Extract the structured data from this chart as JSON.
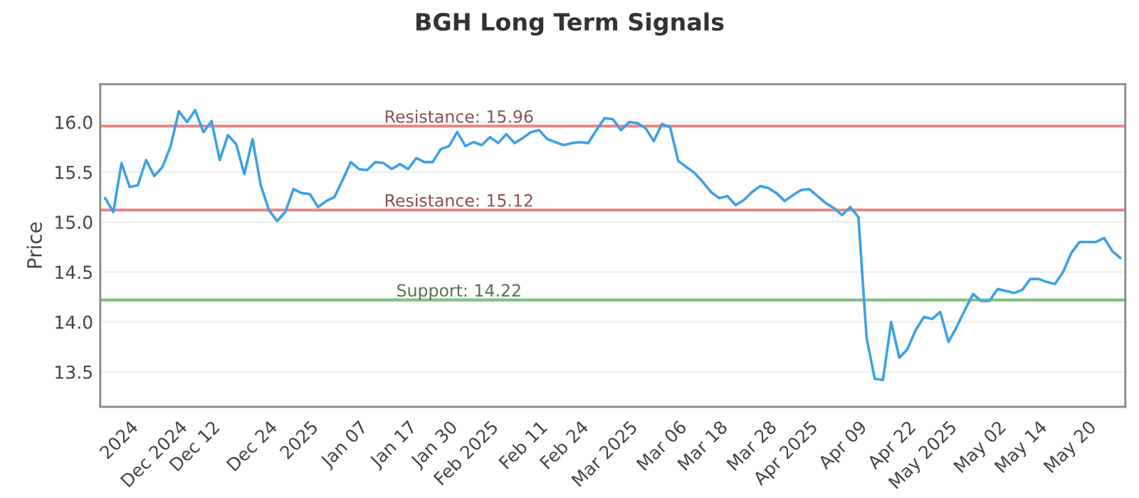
{
  "chart_data": {
    "type": "line",
    "title": "BGH Long Term Signals",
    "ylabel": "Price",
    "categories": [
      null,
      null,
      null,
      "2024",
      null,
      null,
      null,
      null,
      null,
      "Dec 2024",
      null,
      null,
      null,
      "Dec 12",
      null,
      null,
      null,
      null,
      null,
      null,
      "Dec 24",
      null,
      null,
      null,
      null,
      "2025",
      null,
      null,
      null,
      null,
      null,
      "Jan 07",
      null,
      null,
      null,
      null,
      null,
      "Jan 17",
      null,
      null,
      null,
      null,
      "Jan 30",
      null,
      null,
      null,
      null,
      "Feb 2025",
      null,
      null,
      null,
      null,
      null,
      "Feb 11",
      null,
      null,
      null,
      null,
      "Feb 24",
      null,
      null,
      null,
      null,
      null,
      "Mar 2025",
      null,
      null,
      null,
      null,
      null,
      "Mar 06",
      null,
      null,
      null,
      null,
      "Mar 18",
      null,
      null,
      null,
      null,
      null,
      "Mar 28",
      null,
      null,
      null,
      null,
      "Apr 2025",
      null,
      null,
      null,
      null,
      null,
      "Apr 09",
      null,
      null,
      null,
      null,
      null,
      "Apr 22",
      null,
      null,
      null,
      null,
      "May 2025",
      null,
      null,
      null,
      null,
      null,
      "May 02",
      null,
      null,
      null,
      null,
      "May 14",
      null,
      null,
      null,
      null,
      null,
      "May 20",
      null,
      null,
      null,
      null
    ],
    "series": [
      {
        "color": "#3ca1e6",
        "values": [
          15.24,
          15.1,
          15.59,
          15.35,
          15.37,
          15.62,
          15.46,
          15.55,
          15.76,
          16.11,
          16.0,
          16.12,
          15.9,
          16.01,
          15.62,
          15.87,
          15.78,
          15.48,
          15.83,
          15.37,
          15.12,
          15.01,
          15.1,
          15.33,
          15.29,
          15.28,
          15.15,
          15.21,
          15.25,
          15.42,
          15.6,
          15.53,
          15.52,
          15.6,
          15.59,
          15.53,
          15.58,
          15.53,
          15.64,
          15.6,
          15.6,
          15.73,
          15.76,
          15.9,
          15.76,
          15.8,
          15.77,
          15.85,
          15.79,
          15.88,
          15.79,
          15.84,
          15.9,
          15.92,
          15.83,
          15.8,
          15.77,
          15.79,
          15.8,
          15.79,
          15.92,
          16.04,
          16.03,
          15.92,
          16.0,
          15.99,
          15.94,
          15.81,
          15.98,
          15.95,
          15.61,
          15.55,
          15.49,
          15.4,
          15.3,
          15.24,
          15.26,
          15.17,
          15.22,
          15.3,
          15.36,
          15.34,
          15.29,
          15.21,
          15.27,
          15.32,
          15.33,
          15.26,
          15.19,
          15.14,
          15.07,
          15.15,
          15.05,
          13.84,
          13.43,
          13.42,
          14.0,
          13.64,
          13.73,
          13.92,
          14.05,
          14.03,
          14.1,
          13.8,
          13.95,
          14.12,
          14.28,
          14.21,
          14.21,
          14.33,
          14.31,
          14.29,
          14.32,
          14.43,
          14.43,
          14.4,
          14.38,
          14.5,
          14.69,
          14.8,
          14.8,
          14.8,
          14.84,
          14.71,
          14.64
        ]
      }
    ],
    "ylim": [
      13.15,
      16.38
    ],
    "yticks": [
      13.5,
      {
        "value": 14,
        "label": "14.0"
      },
      14.5,
      {
        "value": 15,
        "label": "15.0"
      },
      15.5,
      {
        "value": 16,
        "label": "16.0"
      }
    ],
    "grid": "y",
    "marker": "none",
    "line_style": "solid",
    "ref_lines": [
      {
        "axis": "y",
        "value": 15.96,
        "label": "Resistance: 15.96",
        "color": "#e88585"
      },
      {
        "axis": "y",
        "value": 15.12,
        "label": "Resistance: 15.12",
        "color": "#e88585"
      },
      {
        "axis": "y",
        "value": 14.22,
        "label": "Support: 14.22",
        "color": "#82c282"
      }
    ]
  }
}
